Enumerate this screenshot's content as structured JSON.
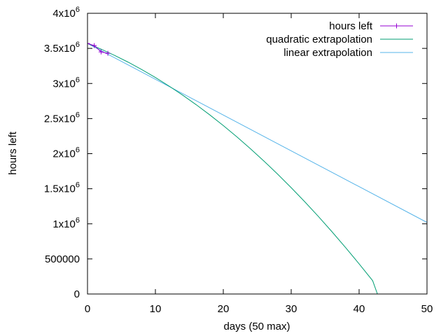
{
  "chart_data": {
    "type": "line",
    "xlabel": "days (50 max)",
    "ylabel": "hours left",
    "xlim": [
      0,
      50
    ],
    "ylim": [
      0,
      4000000
    ],
    "grid": false,
    "legend_position": "top-right",
    "x_ticks": [
      {
        "value": 0,
        "label": "0"
      },
      {
        "value": 10,
        "label": "10"
      },
      {
        "value": 20,
        "label": "20"
      },
      {
        "value": 30,
        "label": "30"
      },
      {
        "value": 40,
        "label": "40"
      },
      {
        "value": 50,
        "label": "50"
      }
    ],
    "y_ticks": [
      {
        "value": 0,
        "mant": "0",
        "exp": ""
      },
      {
        "value": 500000,
        "mant": "500000",
        "exp": ""
      },
      {
        "value": 1000000,
        "mant": "1x10",
        "exp": "6"
      },
      {
        "value": 1500000,
        "mant": "1.5x10",
        "exp": "6"
      },
      {
        "value": 2000000,
        "mant": "2x10",
        "exp": "6"
      },
      {
        "value": 2500000,
        "mant": "2.5x10",
        "exp": "6"
      },
      {
        "value": 3000000,
        "mant": "3x10",
        "exp": "6"
      },
      {
        "value": 3500000,
        "mant": "3.5x10",
        "exp": "6"
      },
      {
        "value": 4000000,
        "mant": "4x10",
        "exp": "6"
      }
    ],
    "series": [
      {
        "name": "hours left",
        "style": "linespoints",
        "color": "#9400d3",
        "x": [
          0,
          1,
          2,
          3
        ],
        "y": [
          3570000,
          3540000,
          3450000,
          3430000
        ]
      },
      {
        "name": "quadratic extrapolation",
        "style": "line",
        "color": "#009e73",
        "x": [
          0,
          2,
          4,
          6,
          8,
          10,
          12,
          14,
          16,
          18,
          20,
          22,
          24,
          26,
          28,
          30,
          32,
          34,
          36,
          38,
          40,
          42,
          42.7
        ],
        "y": [
          3570000,
          3489000,
          3400000,
          3303000,
          3198000,
          3085000,
          2964000,
          2835000,
          2698000,
          2553000,
          2400000,
          2239000,
          2070000,
          1893000,
          1708000,
          1515000,
          1314000,
          1105000,
          888000,
          663000,
          430000,
          189000,
          0
        ]
      },
      {
        "name": "linear extrapolation",
        "style": "line",
        "color": "#56b4e9",
        "x": [
          0,
          50
        ],
        "y": [
          3570000,
          1020000
        ]
      }
    ]
  }
}
